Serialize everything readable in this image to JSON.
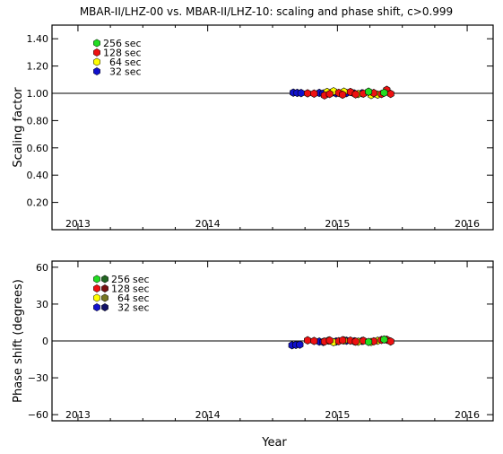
{
  "title": "MBAR-II/LHZ-00 vs. MBAR-II/LHZ-10: scaling and phase shift, c>0.999",
  "colors": {
    "256 sec": "#22dd22",
    "128 sec": "#ee1111",
    "64 sec": "#ffff00",
    "32 sec": "#1111cc",
    "256 sec dark": "#226622",
    "128 sec dark": "#771111",
    "64 sec dark": "#777722",
    "32 sec dark": "#111166",
    "axis": "#000000"
  },
  "xlabel": "Year",
  "chart_data": [
    {
      "type": "scatter",
      "name": "scaling",
      "ylabel": "Scaling factor",
      "xlim": [
        2012.8,
        2016.2
      ],
      "ylim": [
        0.0,
        1.5
      ],
      "xticks": [
        2013,
        2014,
        2015,
        2016
      ],
      "yticks": [
        0.2,
        0.4,
        0.6,
        0.8,
        1.0,
        1.2,
        1.4
      ],
      "ytick_labels": [
        "0.20",
        "0.40",
        "0.60",
        "0.80",
        "1.00",
        "1.20",
        "1.40"
      ],
      "reference_line": 1.0,
      "legend": [
        "256 sec",
        "128 sec",
        "64 sec",
        "32 sec"
      ],
      "legend_dual_markers": false,
      "series": [
        {
          "name": "32 sec",
          "x": [
            2014.66,
            2014.69,
            2014.72,
            2014.86,
            2014.89,
            2014.99,
            2015.07,
            2015.13,
            2015.19
          ],
          "y": [
            1.005,
            1.003,
            1.002,
            1.003,
            0.998,
            1.0,
            1.002,
            0.999,
            1.001
          ]
        },
        {
          "name": "64 sec",
          "x": [
            2014.92,
            2014.97,
            2015.05,
            2015.16,
            2015.26,
            2015.31
          ],
          "y": [
            1.01,
            1.015,
            1.012,
            0.995,
            0.988,
            0.99
          ]
        },
        {
          "name": "128 sec",
          "x": [
            2014.77,
            2014.82,
            2014.9,
            2014.94,
            2015.01,
            2015.04,
            2015.1,
            2015.14,
            2015.2,
            2015.28,
            2015.34,
            2015.38,
            2015.41
          ],
          "y": [
            1.0,
            0.998,
            0.985,
            0.995,
            1.003,
            0.99,
            1.01,
            0.993,
            0.998,
            1.002,
            0.995,
            1.025,
            0.996
          ]
        },
        {
          "name": "256 sec",
          "x": [
            2015.24,
            2015.36
          ],
          "y": [
            1.012,
            1.004
          ]
        }
      ]
    },
    {
      "type": "scatter",
      "name": "phase",
      "ylabel": "Phase shift (degrees)",
      "xlim": [
        2012.8,
        2016.2
      ],
      "ylim": [
        -65,
        65
      ],
      "xticks": [
        2013,
        2014,
        2015,
        2016
      ],
      "yticks": [
        -60,
        -30,
        0,
        30,
        60
      ],
      "ytick_labels": [
        "−60",
        "−30",
        "0",
        "30",
        "60"
      ],
      "reference_line": 0,
      "legend": [
        "256 sec",
        "128 sec",
        "64 sec",
        "32 sec"
      ],
      "legend_dual_markers": true,
      "series": [
        {
          "name": "32 sec",
          "x": [
            2014.65,
            2014.68,
            2014.71,
            2014.86,
            2014.89,
            2014.99,
            2015.07,
            2015.13,
            2015.19
          ],
          "y": [
            -3.5,
            -3.2,
            -3.0,
            -0.5,
            -0.8,
            -0.4,
            0.2,
            -0.3,
            0.0
          ]
        },
        {
          "name": "64 sec",
          "x": [
            2014.93,
            2014.97,
            2015.05,
            2015.16,
            2015.26,
            2015.31
          ],
          "y": [
            0.3,
            -1.0,
            0.4,
            -0.6,
            -0.8,
            0.2
          ]
        },
        {
          "name": "128 sec",
          "x": [
            2014.77,
            2014.82,
            2014.9,
            2014.94,
            2015.01,
            2015.04,
            2015.1,
            2015.14,
            2015.2,
            2015.28,
            2015.34,
            2015.38,
            2015.41
          ],
          "y": [
            0.5,
            0.0,
            -0.5,
            0.4,
            -0.2,
            0.6,
            0.3,
            -0.5,
            0.2,
            -0.3,
            0.8,
            1.0,
            -0.4
          ]
        },
        {
          "name": "256 sec",
          "x": [
            2015.24,
            2015.36
          ],
          "y": [
            -0.8,
            1.2
          ]
        }
      ]
    }
  ]
}
